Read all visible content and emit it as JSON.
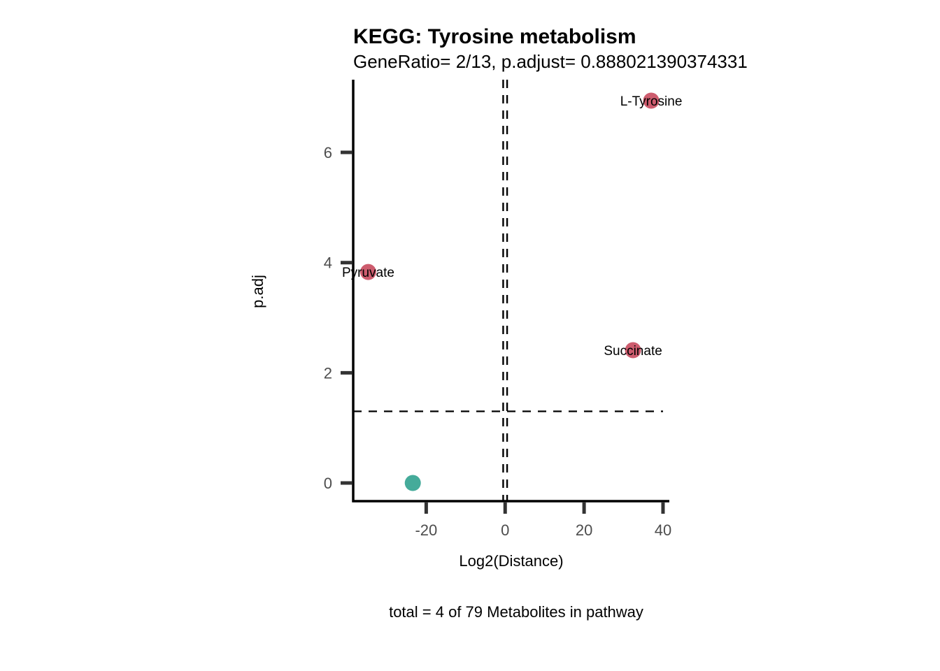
{
  "chart_data": {
    "type": "scatter",
    "title": "KEGG: Tyrosine metabolism",
    "subtitle": "GeneRatio= 2/13, p.adjust= 0.888021390374331",
    "xlabel": "Log2(Distance)",
    "ylabel": "p.adj",
    "caption": "total = 4 of 79 Metabolites in pathway",
    "xlim": [
      -38.5,
      41.6
    ],
    "ylim": [
      -0.33,
      7.32
    ],
    "x_ticks": [
      -20,
      0,
      20,
      40
    ],
    "x_tick_labels": [
      "-20",
      "0",
      "20",
      "40"
    ],
    "y_ticks": [
      0,
      2,
      4,
      6
    ],
    "y_tick_labels": [
      "0",
      "2",
      "4",
      "6"
    ],
    "grid": false,
    "reference_lines": {
      "horizontal": [
        1.3
      ],
      "vertical": [
        -0.5,
        0.5
      ]
    },
    "colors": {
      "significant": "#cd5c6e",
      "not_significant": "#45ab9a",
      "axis": "#000000",
      "ticks": "#333333"
    },
    "points": [
      {
        "label": "L-Tyrosine",
        "x": 37.0,
        "y": 6.94,
        "group": "significant"
      },
      {
        "label": "Pyruvate",
        "x": -34.7,
        "y": 3.83,
        "group": "significant"
      },
      {
        "label": "Succinate",
        "x": 32.4,
        "y": 2.41,
        "group": "significant"
      },
      {
        "label": "",
        "x": -23.4,
        "y": 0.0,
        "group": "not_significant"
      }
    ]
  }
}
